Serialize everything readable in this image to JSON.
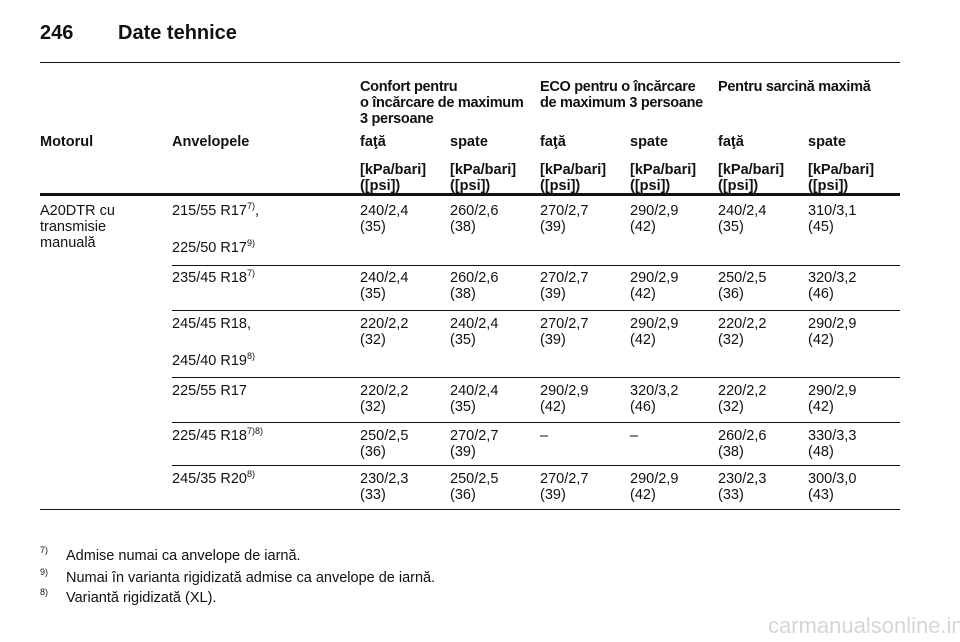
{
  "header": {
    "page_number": "246",
    "title": "Date tehnice"
  },
  "table": {
    "group_headers": [
      "Confort pentru\no încărcare de maximum\n3 persoane",
      "ECO pentru o încărcare\nde maximum 3 persoane",
      "Pentru sarcină maximă"
    ],
    "column_headers": [
      "Motorul",
      "Anvelopele",
      "faţă",
      "spate",
      "faţă",
      "spate",
      "faţă",
      "spate"
    ],
    "units": [
      "[kPa/bari]\n([psi])",
      "[kPa/bari]\n([psi])",
      "[kPa/bari]\n([psi])",
      "[kPa/bari]\n([psi])",
      "[kPa/bari]\n([psi])",
      "[kPa/bari]\n([psi])"
    ],
    "engine": "A20DTR cu\ntransmisie\nmanuală",
    "rows": [
      {
        "tyres": [
          {
            "size": "215/55 R17",
            "note": "7)",
            "after": ","
          },
          {
            "size": "225/50 R17",
            "note": "9)"
          }
        ],
        "values": [
          "240/2,4\n(35)",
          "260/2,6\n(38)",
          "270/2,7\n(39)",
          "290/2,9\n(42)",
          "240/2,4\n(35)",
          "310/3,1\n(45)"
        ]
      },
      {
        "tyres": [
          {
            "size": "235/45 R18",
            "note": "7)"
          }
        ],
        "values": [
          "240/2,4\n(35)",
          "260/2,6\n(38)",
          "270/2,7\n(39)",
          "290/2,9\n(42)",
          "250/2,5\n(36)",
          "320/3,2\n(46)"
        ]
      },
      {
        "tyres": [
          {
            "size": "245/45 R18,"
          },
          {
            "size": "245/40 R19",
            "note": "8)"
          }
        ],
        "values": [
          "220/2,2\n(32)",
          "240/2,4\n(35)",
          "270/2,7\n(39)",
          "290/2,9\n(42)",
          "220/2,2\n(32)",
          "290/2,9\n(42)"
        ]
      },
      {
        "tyres": [
          {
            "size": "225/55 R17"
          }
        ],
        "values": [
          "220/2,2\n(32)",
          "240/2,4\n(35)",
          "290/2,9\n(42)",
          "320/3,2\n(46)",
          "220/2,2\n(32)",
          "290/2,9\n(42)"
        ]
      },
      {
        "tyres": [
          {
            "size": "225/45 R18",
            "note": "7)8)"
          }
        ],
        "values": [
          "250/2,5\n(36)",
          "270/2,7\n(39)",
          "–",
          "–",
          "260/2,6\n(38)",
          "330/3,3\n(48)"
        ]
      },
      {
        "tyres": [
          {
            "size": "245/35 R20",
            "note": "8)"
          }
        ],
        "values": [
          "230/2,3\n(33)",
          "250/2,5\n(36)",
          "270/2,7\n(39)",
          "290/2,9\n(42)",
          "230/2,3\n(33)",
          "300/3,0\n(43)"
        ]
      }
    ]
  },
  "footnotes": [
    {
      "mark": "7)",
      "text": "Admise numai ca anvelope de iarnă."
    },
    {
      "mark": "9)",
      "text": "Numai în varianta rigidizată admise ca anvelope de iarnă."
    },
    {
      "mark": "8)",
      "text": "Variantă rigidizată (XL)."
    }
  ],
  "watermark": "carmanualsonline.info"
}
